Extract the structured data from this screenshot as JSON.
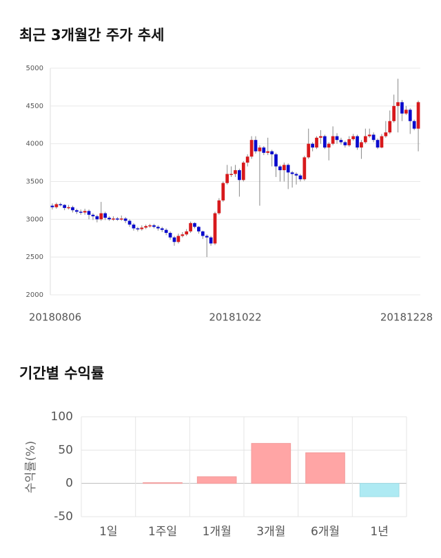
{
  "chart_data": [
    {
      "type": "candlestick",
      "title": "최근 3개월간 주가 추세",
      "categories": [
        "20180806",
        null,
        null,
        null,
        null,
        null,
        null,
        null,
        null,
        null,
        null,
        null,
        null,
        null,
        null,
        null,
        null,
        null,
        null,
        null,
        null,
        null,
        null,
        null,
        null,
        null,
        null,
        null,
        null,
        null,
        null,
        null,
        null,
        null,
        null,
        null,
        null,
        null,
        null,
        null,
        null,
        null,
        null,
        null,
        null,
        "20181022",
        null,
        null,
        null,
        null,
        null,
        null,
        null,
        null,
        null,
        null,
        null,
        null,
        null,
        null,
        null,
        null,
        null,
        null,
        null,
        null,
        null,
        null,
        null,
        null,
        null,
        null,
        null,
        null,
        null,
        null,
        null,
        null,
        null,
        null,
        null,
        null,
        null,
        null,
        null,
        null,
        null,
        null,
        null,
        null,
        "20181228"
      ],
      "open": [
        3180,
        3160,
        3200,
        3190,
        3150,
        3160,
        3120,
        3100,
        3090,
        3110,
        3060,
        3040,
        3000,
        3080,
        3020,
        3000,
        3010,
        3000,
        3010,
        2980,
        2930,
        2880,
        2870,
        2890,
        2910,
        2920,
        2900,
        2880,
        2860,
        2820,
        2760,
        2700,
        2780,
        2800,
        2840,
        2950,
        2900,
        2840,
        2780,
        2760,
        2680,
        3080,
        3250,
        3480,
        3600,
        3600,
        3650,
        3520,
        3750,
        3830,
        4050,
        3900,
        3950,
        3880,
        3900,
        3860,
        3700,
        3650,
        3720,
        3620,
        3600,
        3580,
        3530,
        3820,
        4000,
        3950,
        4080,
        4100,
        3950,
        4000,
        4100,
        4050,
        4020,
        3980,
        4060,
        4100,
        3950,
        4020,
        4100,
        4120,
        4050,
        3950,
        4100,
        4150,
        4300,
        4500,
        4550,
        4400,
        4450,
        4300,
        4200
      ],
      "high": [
        3210,
        3220,
        3220,
        3200,
        3190,
        3180,
        3140,
        3130,
        3140,
        3130,
        3080,
        3060,
        3230,
        3100,
        3040,
        3040,
        3030,
        3050,
        3030,
        3000,
        2950,
        2900,
        2920,
        2930,
        2940,
        2940,
        2920,
        2900,
        2880,
        2840,
        2780,
        2810,
        2830,
        2870,
        2970,
        2960,
        2910,
        2850,
        2800,
        2780,
        3100,
        3280,
        3500,
        3720,
        3700,
        3720,
        3670,
        3770,
        3860,
        4100,
        4100,
        3980,
        3970,
        4080,
        3920,
        3880,
        3720,
        3750,
        3740,
        3640,
        3620,
        3600,
        3840,
        4200,
        4020,
        4100,
        4180,
        4120,
        4020,
        4230,
        4140,
        4080,
        4040,
        4100,
        4130,
        4120,
        4050,
        4200,
        4200,
        4150,
        4070,
        4130,
        4300,
        4440,
        4650,
        4860,
        4580,
        4500,
        4470,
        4320,
        4570
      ],
      "low": [
        3130,
        3140,
        3170,
        3120,
        3130,
        3090,
        3070,
        3060,
        3060,
        3000,
        2990,
        2960,
        2980,
        2990,
        2980,
        2980,
        2980,
        2980,
        2950,
        2900,
        2850,
        2840,
        2850,
        2870,
        2890,
        2880,
        2850,
        2830,
        2790,
        2730,
        2650,
        2680,
        2760,
        2780,
        2820,
        2880,
        2810,
        2740,
        2500,
        2650,
        2660,
        3060,
        3230,
        3460,
        3560,
        3560,
        3300,
        3500,
        3700,
        3800,
        3870,
        3180,
        3850,
        3850,
        3700,
        3560,
        3500,
        3500,
        3400,
        3420,
        3460,
        3500,
        3510,
        3800,
        3900,
        3930,
        4000,
        3930,
        3780,
        3980,
        4000,
        3990,
        3950,
        3960,
        4040,
        3920,
        3800,
        4000,
        4080,
        4020,
        3930,
        3940,
        4080,
        4130,
        4280,
        4150,
        4300,
        4380,
        4130,
        4180,
        3900
      ],
      "close": [
        3160,
        3200,
        3190,
        3150,
        3160,
        3120,
        3100,
        3090,
        3110,
        3060,
        3040,
        3000,
        3080,
        3020,
        3000,
        3010,
        3000,
        3010,
        2980,
        2930,
        2880,
        2870,
        2890,
        2910,
        2920,
        2900,
        2880,
        2860,
        2820,
        2760,
        2700,
        2780,
        2800,
        2840,
        2950,
        2900,
        2840,
        2780,
        2760,
        2680,
        3080,
        3250,
        3480,
        3600,
        3600,
        3650,
        3520,
        3750,
        3830,
        4050,
        3900,
        3950,
        3880,
        3900,
        3860,
        3700,
        3650,
        3720,
        3620,
        3600,
        3580,
        3530,
        3820,
        4000,
        3950,
        4080,
        4100,
        3950,
        4000,
        4100,
        4050,
        4020,
        3980,
        4060,
        4100,
        3950,
        4020,
        4100,
        4120,
        4050,
        3950,
        4100,
        4150,
        4300,
        4500,
        4550,
        4400,
        4450,
        4300,
        4200,
        4550
      ],
      "up_color": "#d7191c",
      "down_color": "#0a0acc",
      "ylim": [
        2000,
        5000
      ],
      "yticks": [
        2000,
        2500,
        3000,
        3500,
        4000,
        4500,
        5000
      ],
      "grid": true
    },
    {
      "type": "bar",
      "title": "기간별 수익률",
      "y_label": "수익률(%)",
      "categories": [
        "1일",
        "1주일",
        "1개월",
        "3개월",
        "6개월",
        "1년"
      ],
      "values": [
        0,
        1,
        10,
        60,
        46,
        -20
      ],
      "positive_color": "#ffa5a5",
      "negative_color": "#aeeaf3",
      "ylim": [
        -50,
        100
      ],
      "yticks": [
        -50,
        0,
        50,
        100
      ],
      "grid": true
    }
  ]
}
